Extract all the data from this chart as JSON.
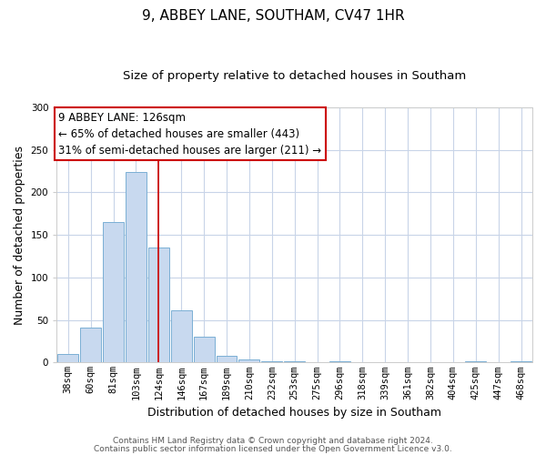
{
  "title": "9, ABBEY LANE, SOUTHAM, CV47 1HR",
  "subtitle": "Size of property relative to detached houses in Southam",
  "xlabel": "Distribution of detached houses by size in Southam",
  "ylabel": "Number of detached properties",
  "bar_labels": [
    "38sqm",
    "60sqm",
    "81sqm",
    "103sqm",
    "124sqm",
    "146sqm",
    "167sqm",
    "189sqm",
    "210sqm",
    "232sqm",
    "253sqm",
    "275sqm",
    "296sqm",
    "318sqm",
    "339sqm",
    "361sqm",
    "382sqm",
    "404sqm",
    "425sqm",
    "447sqm",
    "468sqm"
  ],
  "bar_values": [
    10,
    41,
    165,
    224,
    135,
    61,
    30,
    8,
    4,
    1,
    1,
    0,
    2,
    0,
    0,
    0,
    0,
    0,
    1,
    0,
    1
  ],
  "bar_color": "#c8d9ef",
  "bar_edge_color": "#7aafd4",
  "vline_index": 4,
  "vline_color": "#cc0000",
  "ylim": [
    0,
    300
  ],
  "annotation_line1": "9 ABBEY LANE: 126sqm",
  "annotation_line2": "← 65% of detached houses are smaller (443)",
  "annotation_line3": "31% of semi-detached houses are larger (211) →",
  "annotation_box_color": "#ffffff",
  "annotation_box_edge": "#cc0000",
  "footnote1": "Contains HM Land Registry data © Crown copyright and database right 2024.",
  "footnote2": "Contains public sector information licensed under the Open Government Licence v3.0.",
  "background_color": "#ffffff",
  "grid_color": "#c8d4e8",
  "title_fontsize": 11,
  "subtitle_fontsize": 9.5,
  "axis_label_fontsize": 9,
  "tick_fontsize": 7.5,
  "annotation_fontsize": 8.5,
  "footnote_fontsize": 6.5
}
